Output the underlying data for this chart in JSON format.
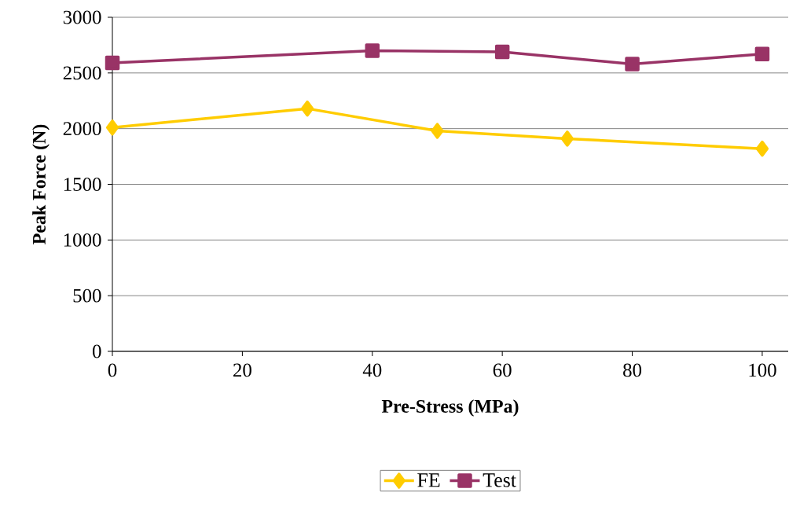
{
  "chart_data": {
    "type": "line",
    "xlabel": "Pre-Stress (MPa)",
    "ylabel": "Peak Force (N)",
    "xlim": [
      0,
      104
    ],
    "xticks": [
      0,
      20,
      40,
      60,
      80,
      100
    ],
    "ylim": [
      0,
      3000
    ],
    "yticks": [
      0,
      500,
      1000,
      1500,
      2000,
      2500,
      3000
    ],
    "grid": "y",
    "legend": "bottom",
    "line_style": "solid",
    "series": [
      {
        "name": "FE",
        "color": "#ffcc00",
        "marker": "diamond",
        "x": [
          0,
          30,
          50,
          70,
          100
        ],
        "values": [
          2010,
          2180,
          1980,
          1910,
          1820
        ]
      },
      {
        "name": "Test",
        "color": "#993366",
        "marker": "square",
        "x": [
          0,
          40,
          60,
          80,
          100
        ],
        "values": [
          2590,
          2700,
          2690,
          2580,
          2670
        ]
      }
    ]
  }
}
